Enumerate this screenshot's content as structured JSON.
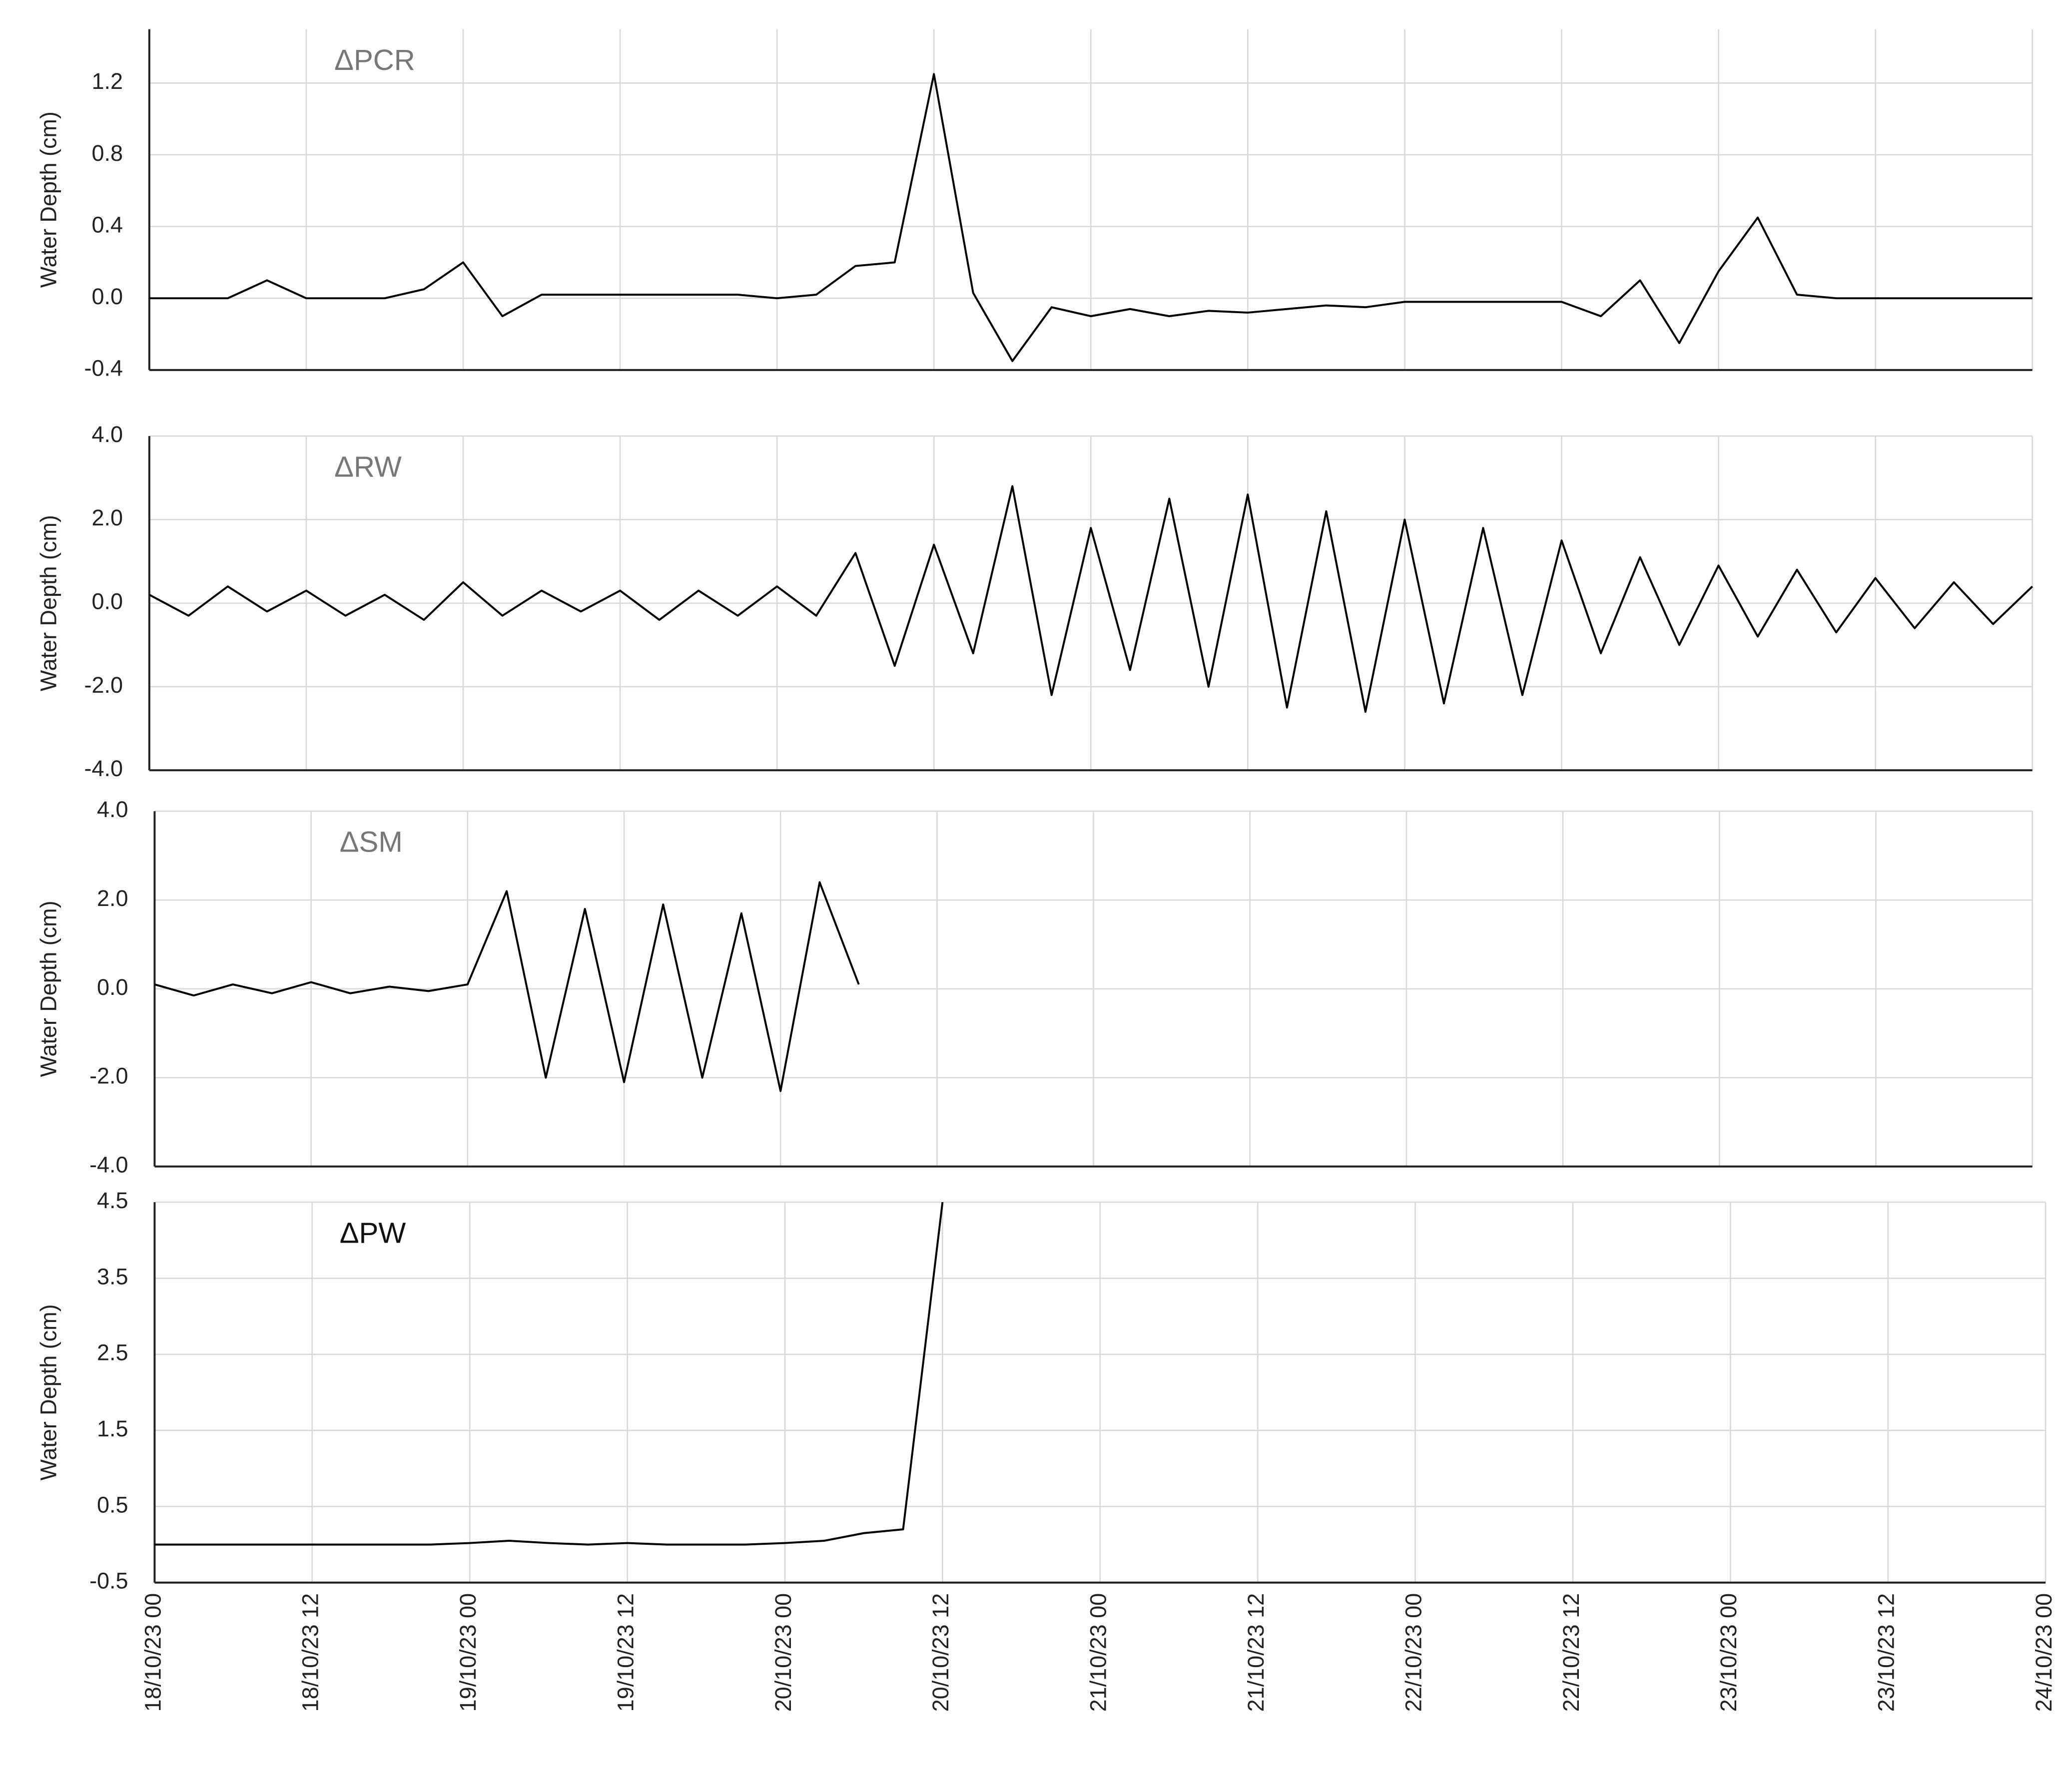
{
  "chart_data": [
    {
      "type": "line",
      "label": "ΔPCR",
      "y_label": "Water Depth (cm)",
      "xlim": [
        "18/10/23 00",
        "24/10/23 00"
      ],
      "ylim": [
        -0.4,
        1.5
      ],
      "yticks": [
        -0.4,
        {
          "value": 0,
          "label": "0.0"
        },
        0.4,
        0.8,
        1.2
      ],
      "grid": true,
      "x": [
        "18/10/23 00",
        "18/10/23 03",
        "18/10/23 06",
        "18/10/23 09",
        "18/10/23 12",
        "18/10/23 15",
        "18/10/23 18",
        "18/10/23 21",
        "19/10/23 00",
        "19/10/23 03",
        "19/10/23 06",
        "19/10/23 09",
        "19/10/23 12",
        "19/10/23 15",
        "19/10/23 18",
        "19/10/23 21",
        "20/10/23 00",
        "20/10/23 03",
        "20/10/23 06",
        "20/10/23 09",
        "20/10/23 12",
        "20/10/23 15",
        "20/10/23 18",
        "20/10/23 21",
        "21/10/23 00",
        "21/10/23 03",
        "21/10/23 06",
        "21/10/23 09",
        "21/10/23 12",
        "21/10/23 15",
        "21/10/23 18",
        "21/10/23 21",
        "22/10/23 00",
        "22/10/23 03",
        "22/10/23 06",
        "22/10/23 09",
        "22/10/23 12",
        "22/10/23 15",
        "22/10/23 18",
        "22/10/23 21",
        "23/10/23 00",
        "23/10/23 03",
        "23/10/23 06",
        "23/10/23 09",
        "23/10/23 12",
        "23/10/23 15",
        "23/10/23 18",
        "23/10/23 21",
        "24/10/23 00"
      ],
      "series": [
        {
          "name": "ΔPCR",
          "color": "#000000",
          "values": [
            0,
            0,
            0,
            0.1,
            0,
            0,
            0,
            0.05,
            0.2,
            -0.1,
            0.02,
            0.02,
            0.02,
            0.02,
            0.02,
            0.02,
            0,
            0.02,
            0.18,
            0.2,
            1.25,
            0.03,
            -0.35,
            -0.05,
            -0.1,
            -0.06,
            -0.1,
            -0.07,
            -0.08,
            -0.06,
            -0.04,
            -0.05,
            -0.02,
            -0.02,
            -0.02,
            -0.02,
            -0.02,
            -0.1,
            0.1,
            -0.25,
            0.15,
            0.45,
            0.02,
            0,
            0,
            0,
            0,
            0,
            0
          ]
        }
      ]
    },
    {
      "type": "line",
      "label": "ΔRW",
      "y_label": "Water Depth (cm)",
      "xlim": [
        "18/10/23 00",
        "24/10/23 00"
      ],
      "ylim": [
        -4,
        4
      ],
      "yticks": [
        {
          "value": -4,
          "label": "-4.0"
        },
        {
          "value": -2,
          "label": "-2.0"
        },
        {
          "value": 0,
          "label": "0.0"
        },
        {
          "value": 2,
          "label": "2.0"
        },
        {
          "value": 4,
          "label": "4.0"
        }
      ],
      "grid": true,
      "x": [
        "18/10/23 00",
        "18/10/23 03",
        "18/10/23 06",
        "18/10/23 09",
        "18/10/23 12",
        "18/10/23 15",
        "18/10/23 18",
        "18/10/23 21",
        "19/10/23 00",
        "19/10/23 03",
        "19/10/23 06",
        "19/10/23 09",
        "19/10/23 12",
        "19/10/23 15",
        "19/10/23 18",
        "19/10/23 21",
        "20/10/23 00",
        "20/10/23 03",
        "20/10/23 06",
        "20/10/23 09",
        "20/10/23 12",
        "20/10/23 15",
        "20/10/23 18",
        "20/10/23 21",
        "21/10/23 00",
        "21/10/23 03",
        "21/10/23 06",
        "21/10/23 09",
        "21/10/23 12",
        "21/10/23 15",
        "21/10/23 18",
        "21/10/23 21",
        "22/10/23 00",
        "22/10/23 03",
        "22/10/23 06",
        "22/10/23 09",
        "22/10/23 12",
        "22/10/23 15",
        "22/10/23 18",
        "22/10/23 21",
        "23/10/23 00",
        "23/10/23 03",
        "23/10/23 06",
        "23/10/23 09",
        "23/10/23 12",
        "23/10/23 15",
        "23/10/23 18",
        "23/10/23 21",
        "24/10/23 00"
      ],
      "series": [
        {
          "name": "ΔRW",
          "color": "#000000",
          "values": [
            0.2,
            -0.3,
            0.4,
            -0.2,
            0.3,
            -0.3,
            0.2,
            -0.4,
            0.5,
            -0.3,
            0.3,
            -0.2,
            0.3,
            -0.4,
            0.3,
            -0.3,
            0.4,
            -0.3,
            1.2,
            -1.5,
            1.4,
            -1.2,
            2.8,
            -2.2,
            1.8,
            -1.6,
            2.5,
            -2.0,
            2.6,
            -2.5,
            2.2,
            -2.6,
            2.0,
            -2.4,
            1.8,
            -2.2,
            1.5,
            -1.2,
            1.1,
            -1.0,
            0.9,
            -0.8,
            0.8,
            -0.7,
            0.6,
            -0.6,
            0.5,
            -0.5,
            0.4
          ]
        }
      ]
    },
    {
      "type": "line",
      "label": "ΔSM",
      "y_label": "Water Depth (cm)",
      "xlim": [
        "18/10/23 00",
        "24/10/23 00"
      ],
      "ylim": [
        -4,
        4
      ],
      "yticks": [
        {
          "value": -4,
          "label": "-4.0"
        },
        {
          "value": -2,
          "label": "-2.0"
        },
        {
          "value": 0,
          "label": "0.0"
        },
        {
          "value": 2,
          "label": "2.0"
        },
        {
          "value": 4,
          "label": "4.0"
        }
      ],
      "grid": true,
      "x": [
        "18/10/23 00",
        "18/10/23 03",
        "18/10/23 06",
        "18/10/23 09",
        "18/10/23 12",
        "18/10/23 15",
        "18/10/23 18",
        "18/10/23 21",
        "19/10/23 00",
        "19/10/23 03",
        "19/10/23 06",
        "19/10/23 09",
        "19/10/23 12",
        "19/10/23 15",
        "19/10/23 18",
        "19/10/23 21",
        "20/10/23 00",
        "20/10/23 03",
        "20/10/23 06",
        "20/10/23 09",
        "20/10/23 12",
        "20/10/23 15",
        "20/10/23 18",
        "20/10/23 21",
        "21/10/23 00",
        "21/10/23 03",
        "21/10/23 06",
        "21/10/23 09",
        "21/10/23 12",
        "21/10/23 15",
        "21/10/23 18",
        "21/10/23 21",
        "22/10/23 00",
        "22/10/23 03",
        "22/10/23 06",
        "22/10/23 09",
        "22/10/23 12",
        "22/10/23 15",
        "22/10/23 18",
        "22/10/23 21",
        "23/10/23 00",
        "23/10/23 03",
        "23/10/23 06",
        "23/10/23 09",
        "23/10/23 12",
        "23/10/23 15",
        "23/10/23 18",
        "23/10/23 21",
        "24/10/23 00"
      ],
      "series": [
        {
          "name": "ΔSM",
          "color": "#000000",
          "values": [
            0.1,
            -0.15,
            0.1,
            -0.1,
            0.15,
            -0.1,
            0.05,
            -0.05,
            0.1,
            2.2,
            -2.0,
            1.8,
            -2.1,
            1.9,
            -2.0,
            1.7,
            -2.3,
            2.4,
            0.1,
            null,
            null,
            null,
            null,
            null,
            null,
            null,
            null,
            null,
            null,
            null,
            null,
            null,
            null,
            null,
            null,
            null,
            null,
            null,
            null,
            null,
            null,
            null,
            null,
            null,
            null,
            null,
            null,
            null,
            null
          ]
        }
      ]
    },
    {
      "type": "line",
      "label": "ΔPW",
      "y_label": "Water Depth (cm)",
      "xlim": [
        "18/10/23 00",
        "24/10/23 00"
      ],
      "ylim": [
        -0.5,
        4.5
      ],
      "yticks": [
        -0.5,
        0.5,
        1.5,
        2.5,
        3.5,
        4.5
      ],
      "grid": true,
      "xticks": [
        "18/10/23 00",
        "18/10/23 12",
        "19/10/23 00",
        "19/10/23 12",
        "20/10/23 00",
        "20/10/23 12",
        "21/10/23 00",
        "21/10/23 12",
        "22/10/23 00",
        "22/10/23 12",
        "23/10/23 00",
        "23/10/23 12",
        "24/10/23 00"
      ],
      "x": [
        "18/10/23 00",
        "18/10/23 03",
        "18/10/23 06",
        "18/10/23 09",
        "18/10/23 12",
        "18/10/23 15",
        "18/10/23 18",
        "18/10/23 21",
        "19/10/23 00",
        "19/10/23 03",
        "19/10/23 06",
        "19/10/23 09",
        "19/10/23 12",
        "19/10/23 15",
        "19/10/23 18",
        "19/10/23 21",
        "20/10/23 00",
        "20/10/23 03",
        "20/10/23 06",
        "20/10/23 09",
        "20/10/23 12",
        "20/10/23 15",
        "20/10/23 18",
        "20/10/23 21",
        "21/10/23 00",
        "21/10/23 03",
        "21/10/23 06",
        "21/10/23 09",
        "21/10/23 12",
        "21/10/23 15",
        "21/10/23 18",
        "21/10/23 21",
        "22/10/23 00",
        "22/10/23 03",
        "22/10/23 06",
        "22/10/23 09",
        "22/10/23 12",
        "22/10/23 15",
        "22/10/23 18",
        "22/10/23 21",
        "23/10/23 00",
        "23/10/23 03",
        "23/10/23 06",
        "23/10/23 09",
        "23/10/23 12",
        "23/10/23 15",
        "23/10/23 18",
        "23/10/23 21",
        "24/10/23 00"
      ],
      "series": [
        {
          "name": "ΔPW",
          "color": "#000000",
          "values": [
            0,
            0,
            0,
            0,
            0,
            0,
            0,
            0,
            0.02,
            0.05,
            0.02,
            0,
            0.02,
            0,
            0,
            0,
            0.02,
            0.05,
            0.15,
            0.2,
            4.5,
            null,
            null,
            null,
            null,
            null,
            null,
            null,
            null,
            null,
            null,
            null,
            null,
            null,
            null,
            null,
            null,
            null,
            null,
            null,
            null,
            null,
            null,
            null,
            null,
            null,
            null,
            null,
            null
          ]
        }
      ]
    }
  ]
}
